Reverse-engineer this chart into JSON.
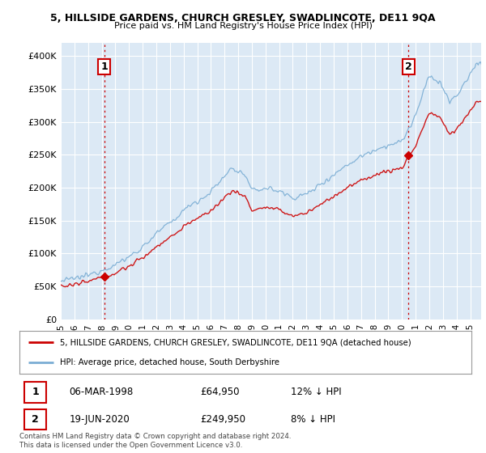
{
  "title1": "5, HILLSIDE GARDENS, CHURCH GRESLEY, SWADLINCOTE, DE11 9QA",
  "title2": "Price paid vs. HM Land Registry's House Price Index (HPI)",
  "ylabel_ticks": [
    "£0",
    "£50K",
    "£100K",
    "£150K",
    "£200K",
    "£250K",
    "£300K",
    "£350K",
    "£400K"
  ],
  "ytick_values": [
    0,
    50000,
    100000,
    150000,
    200000,
    250000,
    300000,
    350000,
    400000
  ],
  "ylim": [
    0,
    420000
  ],
  "xlim_start": 1995.0,
  "xlim_end": 2025.8,
  "xtick_years": [
    1995,
    1996,
    1997,
    1998,
    1999,
    2000,
    2001,
    2002,
    2003,
    2004,
    2005,
    2006,
    2007,
    2008,
    2009,
    2010,
    2011,
    2012,
    2013,
    2014,
    2015,
    2016,
    2017,
    2018,
    2019,
    2020,
    2021,
    2022,
    2023,
    2024,
    2025
  ],
  "sale1_x": 1998.18,
  "sale1_y": 64950,
  "sale2_x": 2020.47,
  "sale2_y": 249950,
  "line_color_red": "#cc0000",
  "line_color_blue": "#7aadd4",
  "vline_color": "#cc0000",
  "legend_label_red": "5, HILLSIDE GARDENS, CHURCH GRESLEY, SWADLINCOTE, DE11 9QA (detached house)",
  "legend_label_blue": "HPI: Average price, detached house, South Derbyshire",
  "table_row1": [
    "1",
    "06-MAR-1998",
    "£64,950",
    "12% ↓ HPI"
  ],
  "table_row2": [
    "2",
    "19-JUN-2020",
    "£249,950",
    "8% ↓ HPI"
  ],
  "footer": "Contains HM Land Registry data © Crown copyright and database right 2024.\nThis data is licensed under the Open Government Licence v3.0.",
  "bg_color": "#ffffff",
  "plot_bg_color": "#dce9f5",
  "grid_color": "#ffffff"
}
